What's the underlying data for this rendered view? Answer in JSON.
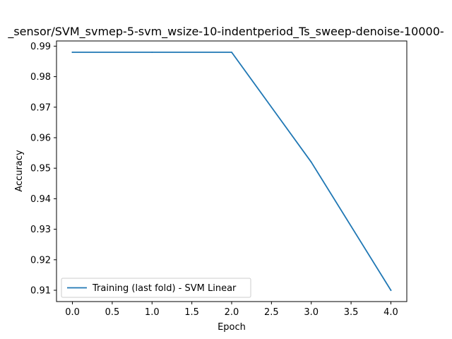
{
  "chart_data": {
    "type": "line",
    "title": "_sensor/SVM_svmep-5-svm_wsize-10-indentperiod_Ts_sweep-denoise-10000-",
    "xlabel": "Epoch",
    "ylabel": "Accuracy",
    "xlim": [
      -0.2,
      4.2
    ],
    "ylim": [
      0.9063,
      0.9917
    ],
    "xticks": [
      0.0,
      0.5,
      1.0,
      1.5,
      2.0,
      2.5,
      3.0,
      3.5,
      4.0
    ],
    "xtick_labels": [
      "0.0",
      "0.5",
      "1.0",
      "1.5",
      "2.0",
      "2.5",
      "3.0",
      "3.5",
      "4.0"
    ],
    "yticks": [
      0.91,
      0.92,
      0.93,
      0.94,
      0.95,
      0.96,
      0.97,
      0.98,
      0.99
    ],
    "ytick_labels": [
      "0.91",
      "0.92",
      "0.93",
      "0.94",
      "0.95",
      "0.96",
      "0.97",
      "0.98",
      "0.99"
    ],
    "grid": false,
    "legend_position": "lower-left",
    "series": [
      {
        "name": "Training (last fold) - SVM Linear",
        "color": "#1f77b4",
        "x": [
          0,
          1,
          2,
          3,
          4
        ],
        "y": [
          0.988,
          0.988,
          0.988,
          0.952,
          0.91
        ]
      }
    ]
  }
}
